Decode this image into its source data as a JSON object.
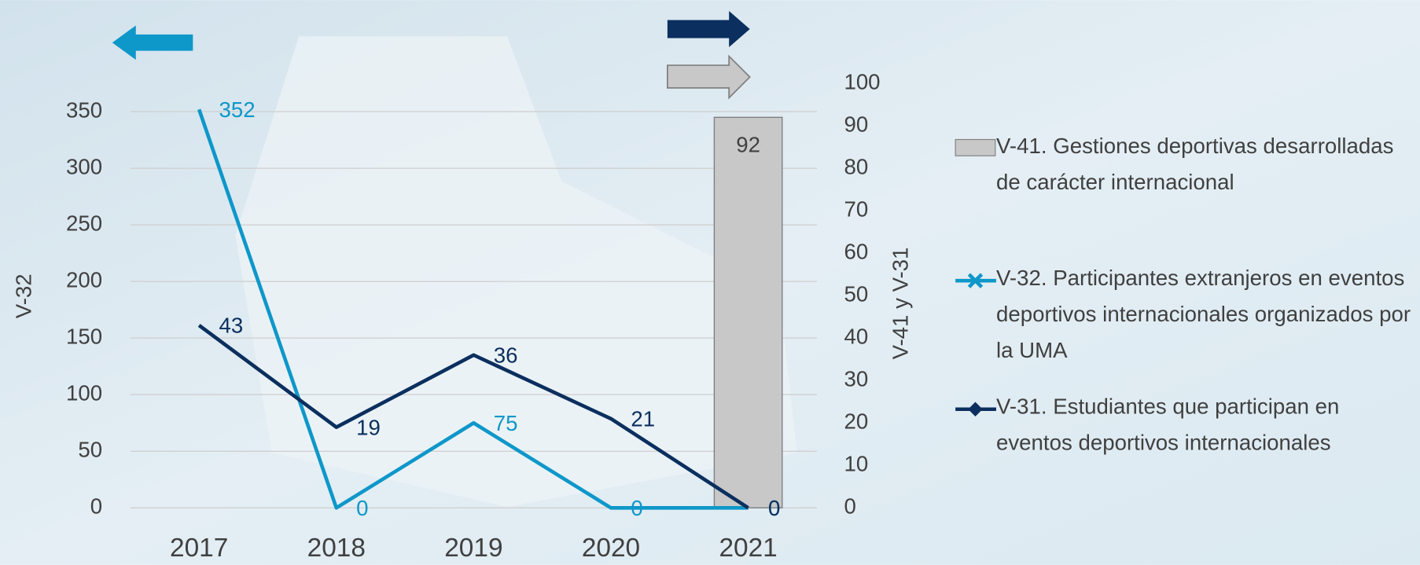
{
  "chart_data": {
    "type": "combo",
    "categories": [
      "2017",
      "2018",
      "2019",
      "2020",
      "2021"
    ],
    "series": [
      {
        "name": "V-41. Gestiones deportivas desarrolladas de carácter internacional",
        "type": "bar",
        "axis": "y2",
        "color": "#c8c8c8",
        "values": [
          null,
          null,
          null,
          null,
          92
        ]
      },
      {
        "name": "V-32. Participantes extranjeros en eventos deportivos internacionales organizados por la UMA",
        "type": "line",
        "axis": "y",
        "color": "#0e97c9",
        "values": [
          352,
          0,
          75,
          0,
          0
        ]
      },
      {
        "name": "V-31. Estudiantes que participan en eventos deportivos internacionales",
        "type": "line",
        "axis": "y2",
        "color": "#0b2f5e",
        "values": [
          43,
          19,
          36,
          21,
          0
        ]
      }
    ],
    "ylabel": "V-32",
    "y2label": "V-41 y V-31",
    "ylim": [
      0,
      375
    ],
    "yticks": [
      0,
      50,
      100,
      150,
      200,
      250,
      300,
      350
    ],
    "y2lim": [
      0,
      100
    ],
    "y2ticks": [
      0,
      10,
      20,
      30,
      40,
      50,
      60,
      70,
      80,
      90,
      100
    ],
    "grid": true,
    "legend": "right"
  }
}
